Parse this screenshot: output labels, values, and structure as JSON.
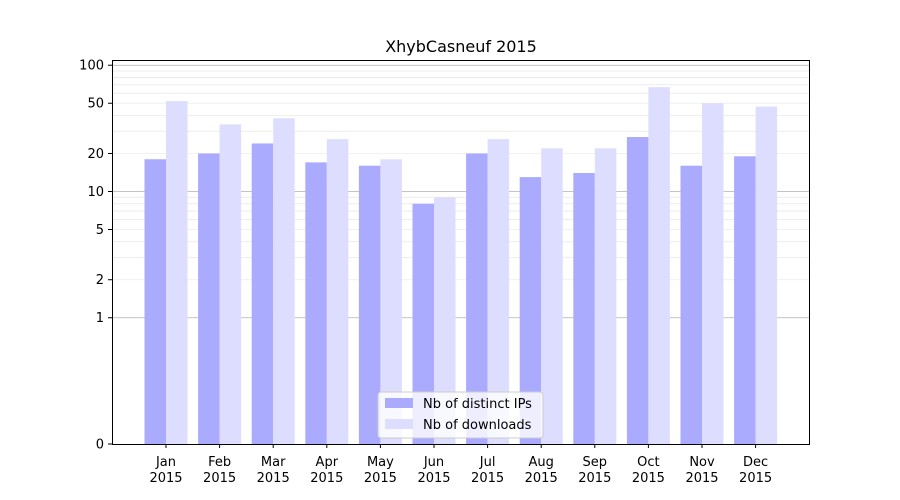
{
  "chart_data": {
    "type": "bar",
    "title": "XhybCasneuf 2015",
    "xlabel": "",
    "ylabel": "",
    "y_scale": "symlog",
    "ylim": [
      0,
      110
    ],
    "y_ticks": [
      0,
      1,
      2,
      5,
      10,
      20,
      50,
      100
    ],
    "categories": [
      [
        "Jan",
        "2015"
      ],
      [
        "Feb",
        "2015"
      ],
      [
        "Mar",
        "2015"
      ],
      [
        "Apr",
        "2015"
      ],
      [
        "May",
        "2015"
      ],
      [
        "Jun",
        "2015"
      ],
      [
        "Jul",
        "2015"
      ],
      [
        "Aug",
        "2015"
      ],
      [
        "Sep",
        "2015"
      ],
      [
        "Oct",
        "2015"
      ],
      [
        "Nov",
        "2015"
      ],
      [
        "Dec",
        "2015"
      ]
    ],
    "series": [
      {
        "name": "Nb of distinct IPs",
        "color": "#aaaaff",
        "values": [
          18,
          20,
          24,
          17,
          16,
          8,
          20,
          13,
          14,
          27,
          16,
          19
        ]
      },
      {
        "name": "Nb of downloads",
        "color": "#ddddff",
        "values": [
          52,
          34,
          38,
          26,
          18,
          9,
          26,
          22,
          22,
          67,
          50,
          47
        ]
      }
    ],
    "grid": true,
    "legend_position": "bottom-center"
  }
}
